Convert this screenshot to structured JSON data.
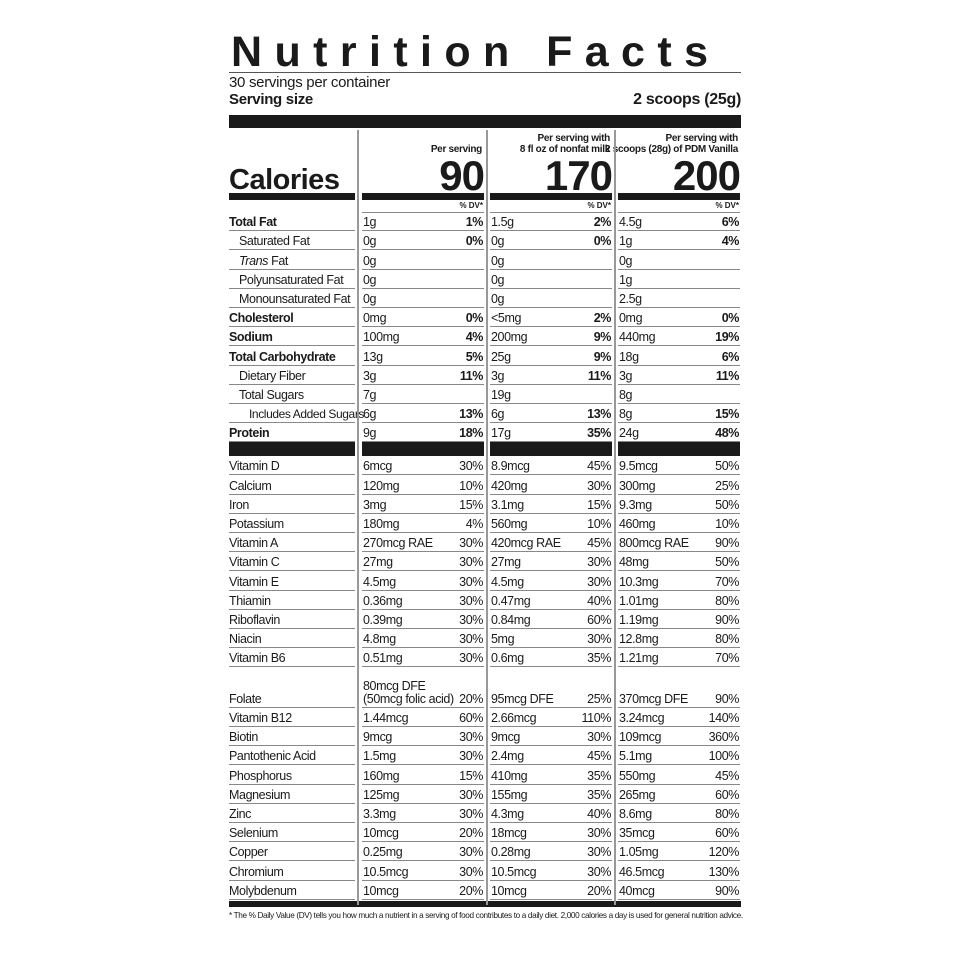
{
  "title": "Nutrition Facts",
  "servings": "30 servings per container",
  "serving_size_label": "Serving size",
  "serving_size_value": "2 scoops (25g)",
  "calories_label": "Calories",
  "dv_header": "% DV*",
  "columns": [
    {
      "heading": "Per serving",
      "calories": "90"
    },
    {
      "heading": "Per serving with\n8 fl oz of nonfat milk",
      "calories": "170"
    },
    {
      "heading": "Per serving with\n2 scoops (28g) of PDM Vanilla",
      "calories": "200"
    }
  ],
  "main_rows": [
    {
      "label": "Total Fat",
      "indent": 0,
      "bold": true,
      "values": [
        [
          "1g",
          "1%"
        ],
        [
          "1.5g",
          "2%"
        ],
        [
          "4.5g",
          "6%"
        ]
      ]
    },
    {
      "label": "Saturated Fat",
      "indent": 1,
      "values": [
        [
          "0g",
          "0%"
        ],
        [
          "0g",
          "0%"
        ],
        [
          "1g",
          "4%"
        ]
      ]
    },
    {
      "label_italic": "Trans",
      "label": " Fat",
      "indent": 1,
      "values": [
        [
          "0g",
          ""
        ],
        [
          "0g",
          ""
        ],
        [
          "0g",
          ""
        ]
      ]
    },
    {
      "label": "Polyunsaturated Fat",
      "indent": 1,
      "values": [
        [
          "0g",
          ""
        ],
        [
          "0g",
          ""
        ],
        [
          "1g",
          ""
        ]
      ]
    },
    {
      "label": "Monounsaturated Fat",
      "indent": 1,
      "values": [
        [
          "0g",
          ""
        ],
        [
          "0g",
          ""
        ],
        [
          "2.5g",
          ""
        ]
      ]
    },
    {
      "label": "Cholesterol",
      "indent": 0,
      "bold": true,
      "values": [
        [
          "0mg",
          "0%"
        ],
        [
          "<5mg",
          "2%"
        ],
        [
          "0mg",
          "0%"
        ]
      ]
    },
    {
      "label": "Sodium",
      "indent": 0,
      "bold": true,
      "values": [
        [
          "100mg",
          "4%"
        ],
        [
          "200mg",
          "9%"
        ],
        [
          "440mg",
          "19%"
        ]
      ]
    },
    {
      "label": "Total Carbohydrate",
      "indent": 0,
      "bold": true,
      "values": [
        [
          "13g",
          "5%"
        ],
        [
          "25g",
          "9%"
        ],
        [
          "18g",
          "6%"
        ]
      ]
    },
    {
      "label": "Dietary Fiber",
      "indent": 1,
      "values": [
        [
          "3g",
          "11%"
        ],
        [
          "3g",
          "11%"
        ],
        [
          "3g",
          "11%"
        ]
      ]
    },
    {
      "label": "Total Sugars",
      "indent": 1,
      "values": [
        [
          "7g",
          ""
        ],
        [
          "19g",
          ""
        ],
        [
          "8g",
          ""
        ]
      ]
    },
    {
      "label": "Includes Added Sugars",
      "indent": 2,
      "values": [
        [
          "6g",
          "13%"
        ],
        [
          "6g",
          "13%"
        ],
        [
          "8g",
          "15%"
        ]
      ]
    },
    {
      "label": "Protein",
      "indent": 0,
      "bold": true,
      "values": [
        [
          "9g",
          "18%"
        ],
        [
          "17g",
          "35%"
        ],
        [
          "24g",
          "48%"
        ]
      ]
    }
  ],
  "vitamin_rows": [
    {
      "label": "Vitamin D",
      "values": [
        [
          "6mcg",
          "30%"
        ],
        [
          "8.9mcg",
          "45%"
        ],
        [
          "9.5mcg",
          "50%"
        ]
      ]
    },
    {
      "label": "Calcium",
      "values": [
        [
          "120mg",
          "10%"
        ],
        [
          "420mg",
          "30%"
        ],
        [
          "300mg",
          "25%"
        ]
      ]
    },
    {
      "label": "Iron",
      "values": [
        [
          "3mg",
          "15%"
        ],
        [
          "3.1mg",
          "15%"
        ],
        [
          "9.3mg",
          "50%"
        ]
      ]
    },
    {
      "label": "Potassium",
      "values": [
        [
          "180mg",
          "4%"
        ],
        [
          "560mg",
          "10%"
        ],
        [
          "460mg",
          "10%"
        ]
      ]
    },
    {
      "label": "Vitamin A",
      "values": [
        [
          "270mcg RAE",
          "30%"
        ],
        [
          "420mcg RAE",
          "45%"
        ],
        [
          "800mcg RAE",
          "90%"
        ]
      ]
    },
    {
      "label": "Vitamin C",
      "values": [
        [
          "27mg",
          "30%"
        ],
        [
          "27mg",
          "30%"
        ],
        [
          "48mg",
          "50%"
        ]
      ]
    },
    {
      "label": "Vitamin E",
      "values": [
        [
          "4.5mg",
          "30%"
        ],
        [
          "4.5mg",
          "30%"
        ],
        [
          "10.3mg",
          "70%"
        ]
      ]
    },
    {
      "label": "Thiamin",
      "values": [
        [
          "0.36mg",
          "30%"
        ],
        [
          "0.47mg",
          "40%"
        ],
        [
          "1.01mg",
          "80%"
        ]
      ]
    },
    {
      "label": "Riboflavin",
      "values": [
        [
          "0.39mg",
          "30%"
        ],
        [
          "0.84mg",
          "60%"
        ],
        [
          "1.19mg",
          "90%"
        ]
      ]
    },
    {
      "label": "Niacin",
      "values": [
        [
          "4.8mg",
          "30%"
        ],
        [
          "5mg",
          "30%"
        ],
        [
          "12.8mg",
          "80%"
        ]
      ]
    },
    {
      "label": "Vitamin B6",
      "values": [
        [
          "0.51mg",
          "30%"
        ],
        [
          "0.6mg",
          "35%"
        ],
        [
          "1.21mg",
          "70%"
        ]
      ]
    },
    {
      "label": "Folate",
      "tall": true,
      "values": [
        [
          "80mcg DFE\n(50mcg folic acid)",
          "20%"
        ],
        [
          "95mcg DFE",
          "25%"
        ],
        [
          "370mcg DFE",
          "90%"
        ]
      ]
    },
    {
      "label": "Vitamin B12",
      "values": [
        [
          "1.44mcg",
          "60%"
        ],
        [
          "2.66mcg",
          "110%"
        ],
        [
          "3.24mcg",
          "140%"
        ]
      ]
    },
    {
      "label": "Biotin",
      "values": [
        [
          "9mcg",
          "30%"
        ],
        [
          "9mcg",
          "30%"
        ],
        [
          "109mcg",
          "360%"
        ]
      ]
    },
    {
      "label": "Pantothenic Acid",
      "values": [
        [
          "1.5mg",
          "30%"
        ],
        [
          "2.4mg",
          "45%"
        ],
        [
          "5.1mg",
          "100%"
        ]
      ]
    },
    {
      "label": "Phosphorus",
      "values": [
        [
          "160mg",
          "15%"
        ],
        [
          "410mg",
          "35%"
        ],
        [
          "550mg",
          "45%"
        ]
      ]
    },
    {
      "label": "Magnesium",
      "values": [
        [
          "125mg",
          "30%"
        ],
        [
          "155mg",
          "35%"
        ],
        [
          "265mg",
          "60%"
        ]
      ]
    },
    {
      "label": "Zinc",
      "values": [
        [
          "3.3mg",
          "30%"
        ],
        [
          "4.3mg",
          "40%"
        ],
        [
          "8.6mg",
          "80%"
        ]
      ]
    },
    {
      "label": "Selenium",
      "values": [
        [
          "10mcg",
          "20%"
        ],
        [
          "18mcg",
          "30%"
        ],
        [
          "35mcg",
          "60%"
        ]
      ]
    },
    {
      "label": "Copper",
      "values": [
        [
          "0.25mg",
          "30%"
        ],
        [
          "0.28mg",
          "30%"
        ],
        [
          "1.05mg",
          "120%"
        ]
      ]
    },
    {
      "label": "Chromium",
      "values": [
        [
          "10.5mcg",
          "30%"
        ],
        [
          "10.5mcg",
          "30%"
        ],
        [
          "46.5mcg",
          "130%"
        ]
      ]
    },
    {
      "label": "Molybdenum",
      "values": [
        [
          "10mcg",
          "20%"
        ],
        [
          "10mcg",
          "20%"
        ],
        [
          "40mcg",
          "90%"
        ]
      ]
    }
  ],
  "footnote": "* The % Daily Value (DV) tells you how much a nutrient in a serving of food contributes to a daily diet. 2,000 calories a day is used for general nutrition advice."
}
